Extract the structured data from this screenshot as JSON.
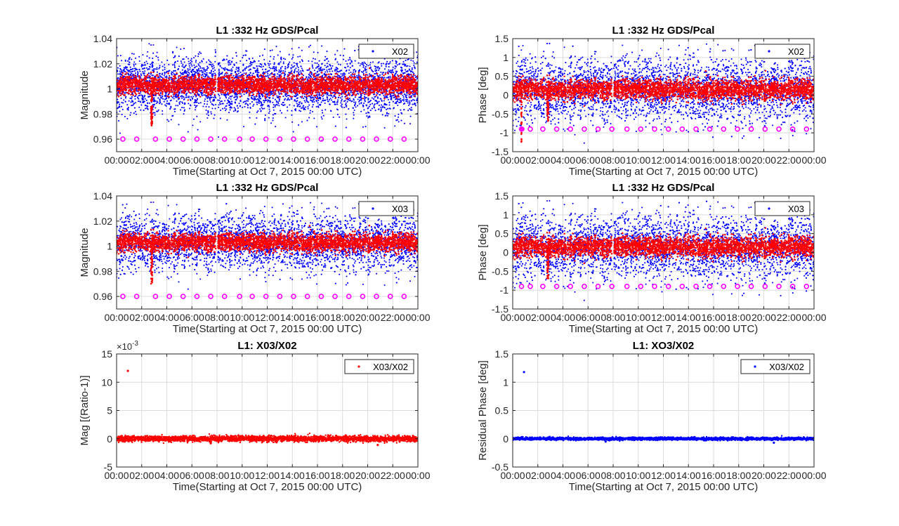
{
  "colors": {
    "blue": "#0000ff",
    "red": "#ff0000",
    "magenta": "#ff00ff",
    "grid": "#dcdcdc",
    "axes": "#262626"
  },
  "chart_data": [
    {
      "type": "scatter",
      "title": "L1 :332 Hz GDS/Pcal",
      "xlabel": "Time(Starting at Oct 7, 2015 00:00 UTC)",
      "ylabel": "Magnitude",
      "xlim": [
        0,
        24
      ],
      "ylim": [
        0.95,
        1.04
      ],
      "xtick_labels": [
        "00:00",
        "02:00",
        "04:00",
        "06:00",
        "08:00",
        "10:00",
        "12:00",
        "14:00",
        "16:00",
        "18:00",
        "20:00",
        "22:00",
        "00:00"
      ],
      "ytick_labels": [
        "0.96",
        "0.98",
        "1",
        "1.02",
        "1.04"
      ],
      "ytick_values": [
        0.96,
        0.98,
        1.0,
        1.02,
        1.04
      ],
      "grid": true,
      "legend": "top-right",
      "series": [
        {
          "name": "X02",
          "role": "scatter",
          "color": "blue",
          "center": 1.003,
          "spread": 0.011,
          "gaps": [
            [
              7.9,
              8.05
            ]
          ]
        },
        {
          "role": "band",
          "color": "red",
          "center": 1.003,
          "spread": 0.0035,
          "dip": {
            "x": 2.8,
            "y": 0.97
          },
          "gaps": [
            [
              7.9,
              8.05
            ]
          ]
        },
        {
          "role": "markers",
          "color": "magenta",
          "y": 0.96,
          "x": [
            0.5,
            1.6,
            3.1,
            4.2,
            5.3,
            6.4,
            7.5,
            8.6,
            9.8,
            10.8,
            11.9,
            13.0,
            14.1,
            15.2,
            16.3,
            17.4,
            18.5,
            19.6,
            20.7,
            21.8,
            22.9
          ]
        }
      ]
    },
    {
      "type": "scatter",
      "title": "L1 :332 Hz GDS/Pcal",
      "xlabel": "Time(Starting at Oct 7, 2015 00:00 UTC)",
      "ylabel": "Phase [deg]",
      "xlim": [
        0,
        24
      ],
      "ylim": [
        -1.5,
        1.5
      ],
      "xtick_labels": [
        "00:00",
        "02:00",
        "04:00",
        "06:00",
        "08:00",
        "10:00",
        "12:00",
        "14:00",
        "16:00",
        "18:00",
        "20:00",
        "22:00",
        "00:00"
      ],
      "ytick_labels": [
        "-1.5",
        "-1",
        "-0.5",
        "0",
        "0.5",
        "1",
        "1.5"
      ],
      "ytick_values": [
        -1.5,
        -1,
        -0.5,
        0,
        0.5,
        1,
        1.5
      ],
      "grid": true,
      "legend": "top-right",
      "series": [
        {
          "name": "X02",
          "role": "scatter",
          "color": "blue",
          "center": 0.15,
          "spread": 0.42,
          "gaps": [
            [
              7.9,
              8.05
            ]
          ]
        },
        {
          "role": "band",
          "color": "red",
          "center": 0.15,
          "spread": 0.13,
          "dip": {
            "x": 2.8,
            "y": -0.7
          },
          "gaps": [
            [
              7.9,
              8.05
            ]
          ],
          "early_drop": {
            "x": 0.7,
            "y": -1.3
          }
        },
        {
          "role": "markers",
          "color": "magenta",
          "y": -0.9,
          "x": [
            0.7,
            1.4,
            2.4,
            3.5,
            4.6,
            5.7,
            6.8,
            7.9,
            9.1,
            10.2,
            11.3,
            12.4,
            13.5,
            14.6,
            15.7,
            16.8,
            17.9,
            19.0,
            20.1,
            21.2,
            22.3,
            23.4
          ]
        }
      ]
    },
    {
      "type": "scatter",
      "title": "L1 :332 Hz GDS/Pcal",
      "xlabel": "Time(Starting at Oct 7, 2015 00:00 UTC)",
      "ylabel": "Magnitude",
      "xlim": [
        0,
        24
      ],
      "ylim": [
        0.95,
        1.04
      ],
      "xtick_labels": [
        "00:00",
        "02:00",
        "04:00",
        "06:00",
        "08:00",
        "10:00",
        "12:00",
        "14:00",
        "16:00",
        "18:00",
        "20:00",
        "22:00",
        "00:00"
      ],
      "ytick_labels": [
        "0.96",
        "0.98",
        "1",
        "1.02",
        "1.04"
      ],
      "ytick_values": [
        0.96,
        0.98,
        1.0,
        1.02,
        1.04
      ],
      "grid": true,
      "legend": "top-right",
      "series": [
        {
          "name": "X03",
          "role": "scatter",
          "color": "blue",
          "center": 1.003,
          "spread": 0.011,
          "gaps": [
            [
              7.9,
              8.05
            ]
          ]
        },
        {
          "role": "band",
          "color": "red",
          "center": 1.003,
          "spread": 0.0035,
          "dip": {
            "x": 2.8,
            "y": 0.97
          },
          "gaps": [
            [
              7.9,
              8.05
            ]
          ]
        },
        {
          "role": "markers",
          "color": "magenta",
          "y": 0.96,
          "x": [
            0.5,
            1.6,
            3.1,
            4.2,
            5.3,
            6.4,
            7.5,
            8.6,
            9.8,
            10.8,
            11.9,
            13.0,
            14.1,
            15.2,
            16.3,
            17.4,
            18.5,
            19.6,
            20.7,
            21.8,
            22.9
          ]
        }
      ]
    },
    {
      "type": "scatter",
      "title": "L1 :332 Hz GDS/Pcal",
      "xlabel": "Time(Starting at Oct 7, 2015 00:00 UTC)",
      "ylabel": "Phase [deg]",
      "xlim": [
        0,
        24
      ],
      "ylim": [
        -1.5,
        1.5
      ],
      "xtick_labels": [
        "00:00",
        "02:00",
        "04:00",
        "06:00",
        "08:00",
        "10:00",
        "12:00",
        "14:00",
        "16:00",
        "18:00",
        "20:00",
        "22:00",
        "00:00"
      ],
      "ytick_labels": [
        "-1.5",
        "-1",
        "-0.5",
        "0",
        "0.5",
        "1",
        "1.5"
      ],
      "ytick_values": [
        -1.5,
        -1,
        -0.5,
        0,
        0.5,
        1,
        1.5
      ],
      "grid": true,
      "legend": "top-right",
      "series": [
        {
          "name": "X03",
          "role": "scatter",
          "color": "blue",
          "center": 0.15,
          "spread": 0.42,
          "gaps": [
            [
              7.9,
              8.05
            ]
          ]
        },
        {
          "role": "band",
          "color": "red",
          "center": 0.15,
          "spread": 0.13,
          "dip": {
            "x": 2.8,
            "y": -0.7
          },
          "gaps": [
            [
              7.9,
              8.05
            ]
          ]
        },
        {
          "role": "markers",
          "color": "magenta",
          "y": -0.9,
          "x": [
            0.7,
            1.4,
            2.4,
            3.5,
            4.6,
            5.7,
            6.8,
            7.9,
            9.1,
            10.2,
            11.3,
            12.4,
            13.5,
            14.6,
            15.7,
            16.8,
            17.9,
            19.0,
            20.1,
            21.2,
            22.3,
            23.4
          ]
        }
      ]
    },
    {
      "type": "scatter",
      "title": "L1: X03/X02",
      "xlabel": "Time(Starting at Oct 7, 2015 00:00 UTC)",
      "ylabel": "Mag [(Ratio-1)]",
      "exponent_label": "×10",
      "exponent_value": "-3",
      "xlim": [
        0,
        24
      ],
      "ylim": [
        -5,
        15
      ],
      "xtick_labels": [
        "00:00",
        "02:00",
        "04:00",
        "06:00",
        "08:00",
        "10:00",
        "12:00",
        "14:00",
        "16:00",
        "18:00",
        "20:00",
        "22:00",
        "00:00"
      ],
      "ytick_labels": [
        "-5",
        "0",
        "5",
        "10",
        "15"
      ],
      "ytick_values": [
        -5,
        0,
        5,
        10,
        15
      ],
      "grid": true,
      "legend": "top-right",
      "series": [
        {
          "name": "X03/X02",
          "role": "flat",
          "color": "red",
          "center": 0,
          "spread": 0.25,
          "outliers": [
            [
              0.9,
              12.0
            ],
            [
              12.0,
              -0.6
            ],
            [
              20.8,
              -1.1
            ],
            [
              7.5,
              -0.8
            ]
          ]
        }
      ]
    },
    {
      "type": "scatter",
      "title": "L1: XO3/X02",
      "xlabel": "Time(Starting at Oct 7, 2015 00:00 UTC)",
      "ylabel": "Residual Phase [deg]",
      "xlim": [
        0,
        24
      ],
      "ylim": [
        -0.5,
        1.5
      ],
      "xtick_labels": [
        "00:00",
        "02:00",
        "04:00",
        "06:00",
        "08:00",
        "10:00",
        "12:00",
        "14:00",
        "16:00",
        "18:00",
        "20:00",
        "22:00",
        "00:00"
      ],
      "ytick_labels": [
        "-0.5",
        "0",
        "0.5",
        "1",
        "1.5"
      ],
      "ytick_values": [
        -0.5,
        0,
        0.5,
        1,
        1.5
      ],
      "grid": true,
      "legend": "top-right",
      "series": [
        {
          "name": "X03/X02",
          "role": "flat",
          "color": "blue",
          "center": 0,
          "spread": 0.012,
          "outliers": [
            [
              0.9,
              1.18
            ],
            [
              20.8,
              -0.07
            ],
            [
              7.4,
              -0.05
            ]
          ]
        }
      ]
    }
  ]
}
